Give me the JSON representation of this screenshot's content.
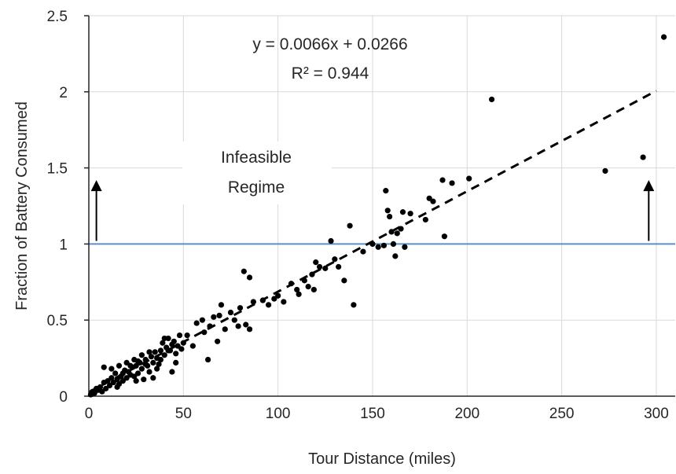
{
  "chart_data": {
    "type": "scatter",
    "title": "",
    "xlabel": "Tour Distance (miles)",
    "ylabel": "Fraction of Battery Consumed",
    "xlim": [
      0,
      310
    ],
    "ylim": [
      0,
      2.5
    ],
    "x_ticks": [
      0,
      50,
      100,
      150,
      200,
      250,
      300
    ],
    "y_ticks": [
      0,
      0.5,
      1,
      1.5,
      2,
      2.5
    ],
    "x_tick_labels": [
      "0",
      "50",
      "100",
      "150",
      "200",
      "250",
      "300"
    ],
    "y_tick_labels": [
      "0",
      "0.5",
      "1",
      "1.5",
      "2",
      "2.5"
    ],
    "grid": true,
    "marker_color": "#000000",
    "trendline": {
      "slope": 0.0066,
      "intercept": 0.0266,
      "x_range": [
        0,
        300
      ],
      "style": "dashed",
      "color": "#000000",
      "equation_label": "y = 0.0066x + 0.0266",
      "r2_label": "R² = 0.944"
    },
    "threshold": {
      "y": 1,
      "color": "#5b8fc9"
    },
    "arrows": [
      {
        "x": 4,
        "from_y": 1.02,
        "to_y": 1.42
      },
      {
        "x": 296,
        "from_y": 1.02,
        "to_y": 1.42
      }
    ],
    "annotation_lines": [
      "Infeasible",
      "Regime"
    ],
    "points": [
      [
        1,
        0.01
      ],
      [
        2,
        0.03
      ],
      [
        3,
        0.02
      ],
      [
        4,
        0.05
      ],
      [
        5,
        0.04
      ],
      [
        6,
        0.06
      ],
      [
        7,
        0.03
      ],
      [
        8,
        0.09
      ],
      [
        9,
        0.05
      ],
      [
        10,
        0.1
      ],
      [
        11,
        0.07
      ],
      [
        12,
        0.12
      ],
      [
        13,
        0.09
      ],
      [
        14,
        0.15
      ],
      [
        15,
        0.11
      ],
      [
        16,
        0.08
      ],
      [
        17,
        0.13
      ],
      [
        18,
        0.1
      ],
      [
        19,
        0.17
      ],
      [
        20,
        0.12
      ],
      [
        21,
        0.16
      ],
      [
        22,
        0.14
      ],
      [
        23,
        0.19
      ],
      [
        24,
        0.13
      ],
      [
        25,
        0.2
      ],
      [
        26,
        0.15
      ],
      [
        27,
        0.22
      ],
      [
        28,
        0.18
      ],
      [
        29,
        0.11
      ],
      [
        30,
        0.24
      ],
      [
        31,
        0.2
      ],
      [
        32,
        0.16
      ],
      [
        33,
        0.26
      ],
      [
        34,
        0.22
      ],
      [
        35,
        0.29
      ],
      [
        36,
        0.25
      ],
      [
        37,
        0.21
      ],
      [
        38,
        0.3
      ],
      [
        39,
        0.35
      ],
      [
        40,
        0.27
      ],
      [
        41,
        0.32
      ],
      [
        42,
        0.38
      ],
      [
        43,
        0.3
      ],
      [
        44,
        0.34
      ],
      [
        45,
        0.36
      ],
      [
        46,
        0.28
      ],
      [
        47,
        0.33
      ],
      [
        48,
        0.4
      ],
      [
        49,
        0.31
      ],
      [
        50,
        0.35
      ],
      [
        8,
        0.19
      ],
      [
        12,
        0.18
      ],
      [
        16,
        0.2
      ],
      [
        18,
        0.15
      ],
      [
        20,
        0.22
      ],
      [
        22,
        0.2
      ],
      [
        24,
        0.24
      ],
      [
        26,
        0.23
      ],
      [
        28,
        0.27
      ],
      [
        30,
        0.21
      ],
      [
        32,
        0.29
      ],
      [
        34,
        0.12
      ],
      [
        36,
        0.18
      ],
      [
        38,
        0.24
      ],
      [
        40,
        0.38
      ],
      [
        42,
        0.3
      ],
      [
        44,
        0.16
      ],
      [
        46,
        0.22
      ],
      [
        15,
        0.06
      ],
      [
        25,
        0.1
      ],
      [
        52,
        0.4
      ],
      [
        55,
        0.33
      ],
      [
        57,
        0.48
      ],
      [
        60,
        0.5
      ],
      [
        61,
        0.42
      ],
      [
        63,
        0.24
      ],
      [
        64,
        0.46
      ],
      [
        66,
        0.52
      ],
      [
        68,
        0.36
      ],
      [
        69,
        0.53
      ],
      [
        70,
        0.6
      ],
      [
        72,
        0.44
      ],
      [
        75,
        0.55
      ],
      [
        77,
        0.5
      ],
      [
        79,
        0.46
      ],
      [
        80,
        0.58
      ],
      [
        82,
        0.82
      ],
      [
        83,
        0.47
      ],
      [
        85,
        0.78
      ],
      [
        85,
        0.44
      ],
      [
        87,
        0.62
      ],
      [
        92,
        0.63
      ],
      [
        95,
        0.6
      ],
      [
        98,
        0.64
      ],
      [
        100,
        0.66
      ],
      [
        103,
        0.62
      ],
      [
        107,
        0.74
      ],
      [
        110,
        0.7
      ],
      [
        111,
        0.67
      ],
      [
        114,
        0.76
      ],
      [
        116,
        0.72
      ],
      [
        118,
        0.8
      ],
      [
        119,
        0.7
      ],
      [
        120,
        0.88
      ],
      [
        122,
        0.85
      ],
      [
        125,
        0.84
      ],
      [
        128,
        1.02
      ],
      [
        130,
        0.9
      ],
      [
        132,
        0.85
      ],
      [
        135,
        0.76
      ],
      [
        138,
        1.12
      ],
      [
        140,
        0.6
      ],
      [
        145,
        0.95
      ],
      [
        150,
        1.0
      ],
      [
        153,
        0.98
      ],
      [
        156,
        0.99
      ],
      [
        157,
        1.35
      ],
      [
        158,
        1.22
      ],
      [
        159,
        1.18
      ],
      [
        160,
        1.08
      ],
      [
        161,
        1.0
      ],
      [
        162,
        0.92
      ],
      [
        163,
        1.07
      ],
      [
        165,
        1.1
      ],
      [
        166,
        1.21
      ],
      [
        167,
        0.98
      ],
      [
        170,
        1.2
      ],
      [
        178,
        1.16
      ],
      [
        180,
        1.3
      ],
      [
        182,
        1.28
      ],
      [
        187,
        1.42
      ],
      [
        188,
        1.05
      ],
      [
        192,
        1.4
      ],
      [
        201,
        1.43
      ],
      [
        213,
        1.95
      ],
      [
        273,
        1.48
      ],
      [
        293,
        1.57
      ],
      [
        304,
        2.36
      ]
    ]
  }
}
